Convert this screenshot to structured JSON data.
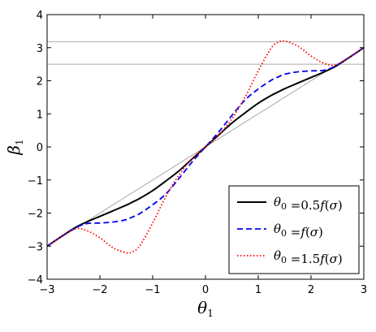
{
  "chart_data": {
    "type": "line",
    "xlabel": "θ",
    "xlabel_sub": "1",
    "ylabel": "β",
    "ylabel_sub": "1",
    "xlim": [
      -3,
      3
    ],
    "ylim": [
      -4,
      4
    ],
    "xticks": [
      -3,
      -2,
      -1,
      0,
      1,
      2,
      3
    ],
    "xtick_labels": [
      "−3",
      "−2",
      "−1",
      "0",
      "1",
      "2",
      "3"
    ],
    "yticks": [
      -4,
      -3,
      -2,
      -1,
      0,
      1,
      2,
      3,
      4
    ],
    "ytick_labels": [
      "−4",
      "−3",
      "−2",
      "−1",
      "0",
      "1",
      "2",
      "3",
      "4"
    ],
    "grid": false,
    "legend_position": "lower-right",
    "reference_lines": [
      {
        "kind": "diagonal",
        "from": [
          -3,
          -3
        ],
        "to": [
          3,
          3
        ],
        "color": "#aaaaaa"
      },
      {
        "kind": "horizontal",
        "y": 3.18,
        "color": "#aaaaaa"
      },
      {
        "kind": "horizontal",
        "y": 2.5,
        "color": "#aaaaaa"
      }
    ],
    "x": [
      -3.0,
      -2.5,
      -2.25,
      -2.0,
      -1.75,
      -1.5,
      -1.4,
      -1.25,
      -1.0,
      -0.75,
      -0.5,
      -0.25,
      0.0,
      0.25,
      0.5,
      0.75,
      1.0,
      1.25,
      1.4,
      1.5,
      1.75,
      2.0,
      2.25,
      2.5,
      3.0
    ],
    "series": [
      {
        "legend_parts": [
          {
            "t": "θ",
            "it": true
          },
          {
            "t": "0",
            "sub": true
          },
          {
            "t": " =0.5"
          },
          {
            "t": "f",
            "it": true
          },
          {
            "t": "("
          },
          {
            "t": "σ",
            "it": true
          },
          {
            "t": ")"
          }
        ],
        "color": "#000000",
        "dash": "",
        "y": [
          -3.0,
          -2.47,
          -2.27,
          -2.1,
          -1.93,
          -1.76,
          -1.68,
          -1.56,
          -1.32,
          -1.03,
          -0.72,
          -0.36,
          0.0,
          0.36,
          0.72,
          1.03,
          1.32,
          1.56,
          1.68,
          1.76,
          1.93,
          2.1,
          2.27,
          2.47,
          3.0
        ]
      },
      {
        "legend_parts": [
          {
            "t": "θ",
            "it": true
          },
          {
            "t": "0",
            "sub": true
          },
          {
            "t": " ="
          },
          {
            "t": "f",
            "it": true
          },
          {
            "t": "("
          },
          {
            "t": "σ",
            "it": true
          },
          {
            "t": ")"
          }
        ],
        "color": "#0000ee",
        "dash": "7,4",
        "y": [
          -3.0,
          -2.48,
          -2.32,
          -2.3,
          -2.27,
          -2.2,
          -2.13,
          -2.02,
          -1.75,
          -1.42,
          -0.95,
          -0.45,
          0.0,
          0.45,
          0.95,
          1.42,
          1.75,
          2.02,
          2.13,
          2.2,
          2.27,
          2.3,
          2.32,
          2.48,
          3.0
        ]
      },
      {
        "legend_parts": [
          {
            "t": "θ",
            "it": true
          },
          {
            "t": "0",
            "sub": true
          },
          {
            "t": " =1.5"
          },
          {
            "t": "f",
            "it": true
          },
          {
            "t": "("
          },
          {
            "t": "σ",
            "it": true
          },
          {
            "t": ")"
          }
        ],
        "color": "#ff0000",
        "dash": "1.5,2.5",
        "y": [
          -3.0,
          -2.5,
          -2.53,
          -2.75,
          -3.05,
          -3.2,
          -3.18,
          -3.0,
          -2.3,
          -1.5,
          -0.85,
          -0.35,
          0.0,
          0.35,
          0.85,
          1.5,
          2.3,
          3.0,
          3.18,
          3.2,
          3.05,
          2.75,
          2.53,
          2.5,
          3.0
        ]
      }
    ]
  }
}
